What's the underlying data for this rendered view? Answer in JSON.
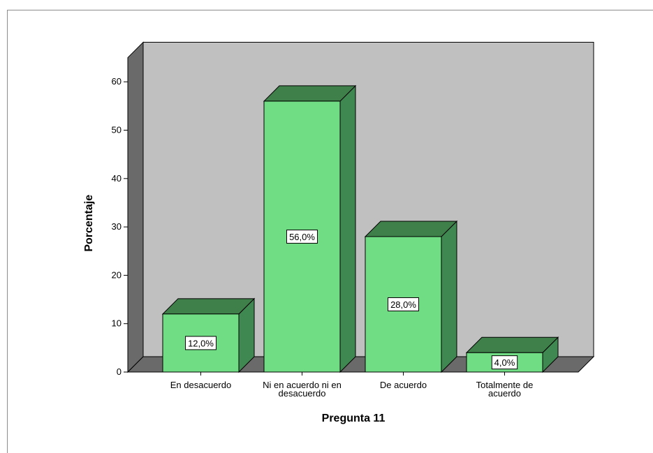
{
  "chart_data": {
    "type": "bar",
    "categories": [
      [
        "En desacuerdo"
      ],
      [
        "Ni en acuerdo ni en",
        "desacuerdo"
      ],
      [
        "De acuerdo"
      ],
      [
        "Totalmente de",
        "acuerdo"
      ]
    ],
    "values": [
      12.0,
      56.0,
      28.0,
      4.0
    ],
    "data_labels": [
      "12,0%",
      "56,0%",
      "28,0%",
      "4,0%"
    ],
    "xlabel": "Pregunta 11",
    "ylabel": "Porcentaje",
    "ylim": [
      0,
      65
    ],
    "yticks": [
      0,
      10,
      20,
      30,
      40,
      50,
      60
    ],
    "style": "3d",
    "grid": false,
    "colors": {
      "bar_front": "#70dc84",
      "bar_top": "#3f7f49",
      "bar_side": "#408851",
      "back_wall": "#c0c0c0",
      "side_wall": "#6a6a6a",
      "floor": "#6a6a6a"
    }
  }
}
